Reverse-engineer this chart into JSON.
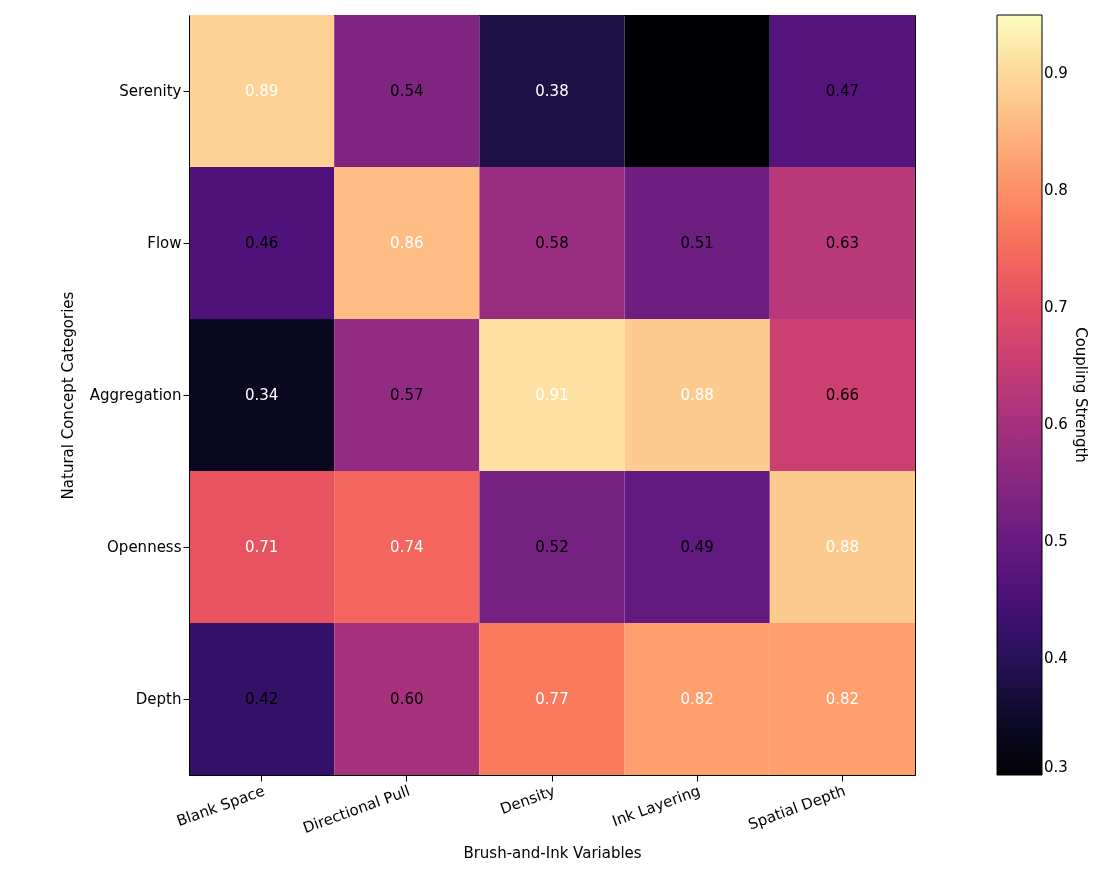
{
  "chart_data": {
    "type": "heatmap",
    "xlabel": "Brush-and-Ink Variables",
    "ylabel": "Natural Concept Categories",
    "clabel": "Coupling Strength",
    "categories": [
      "Blank Space",
      "Directional Pull",
      "Density",
      "Ink Layering",
      "Spatial Depth"
    ],
    "y_categories": [
      "Serenity",
      "Flow",
      "Aggregation",
      "Openness",
      "Depth"
    ],
    "cells": [
      [
        0.89,
        0.54,
        0.38,
        0.3,
        0.47
      ],
      [
        0.46,
        0.86,
        0.58,
        0.51,
        0.63
      ],
      [
        0.34,
        0.57,
        0.91,
        0.88,
        0.66
      ],
      [
        0.71,
        0.74,
        0.52,
        0.49,
        0.88
      ],
      [
        0.42,
        0.6,
        0.77,
        0.82,
        0.82
      ]
    ],
    "cell_labels": [
      [
        "0.89",
        "0.54",
        "0.38",
        null,
        "0.47"
      ],
      [
        "0.46",
        "0.86",
        "0.58",
        "0.51",
        "0.63"
      ],
      [
        "0.34",
        "0.57",
        "0.91",
        "0.88",
        "0.66"
      ],
      [
        "0.71",
        "0.74",
        "0.52",
        "0.49",
        "0.88"
      ],
      [
        "0.42",
        "0.60",
        "0.77",
        "0.82",
        "0.82"
      ]
    ],
    "clim": [
      0.3,
      0.95
    ],
    "cticks": [
      0.3,
      0.4,
      0.5,
      0.6,
      0.7,
      0.8,
      0.9
    ]
  }
}
